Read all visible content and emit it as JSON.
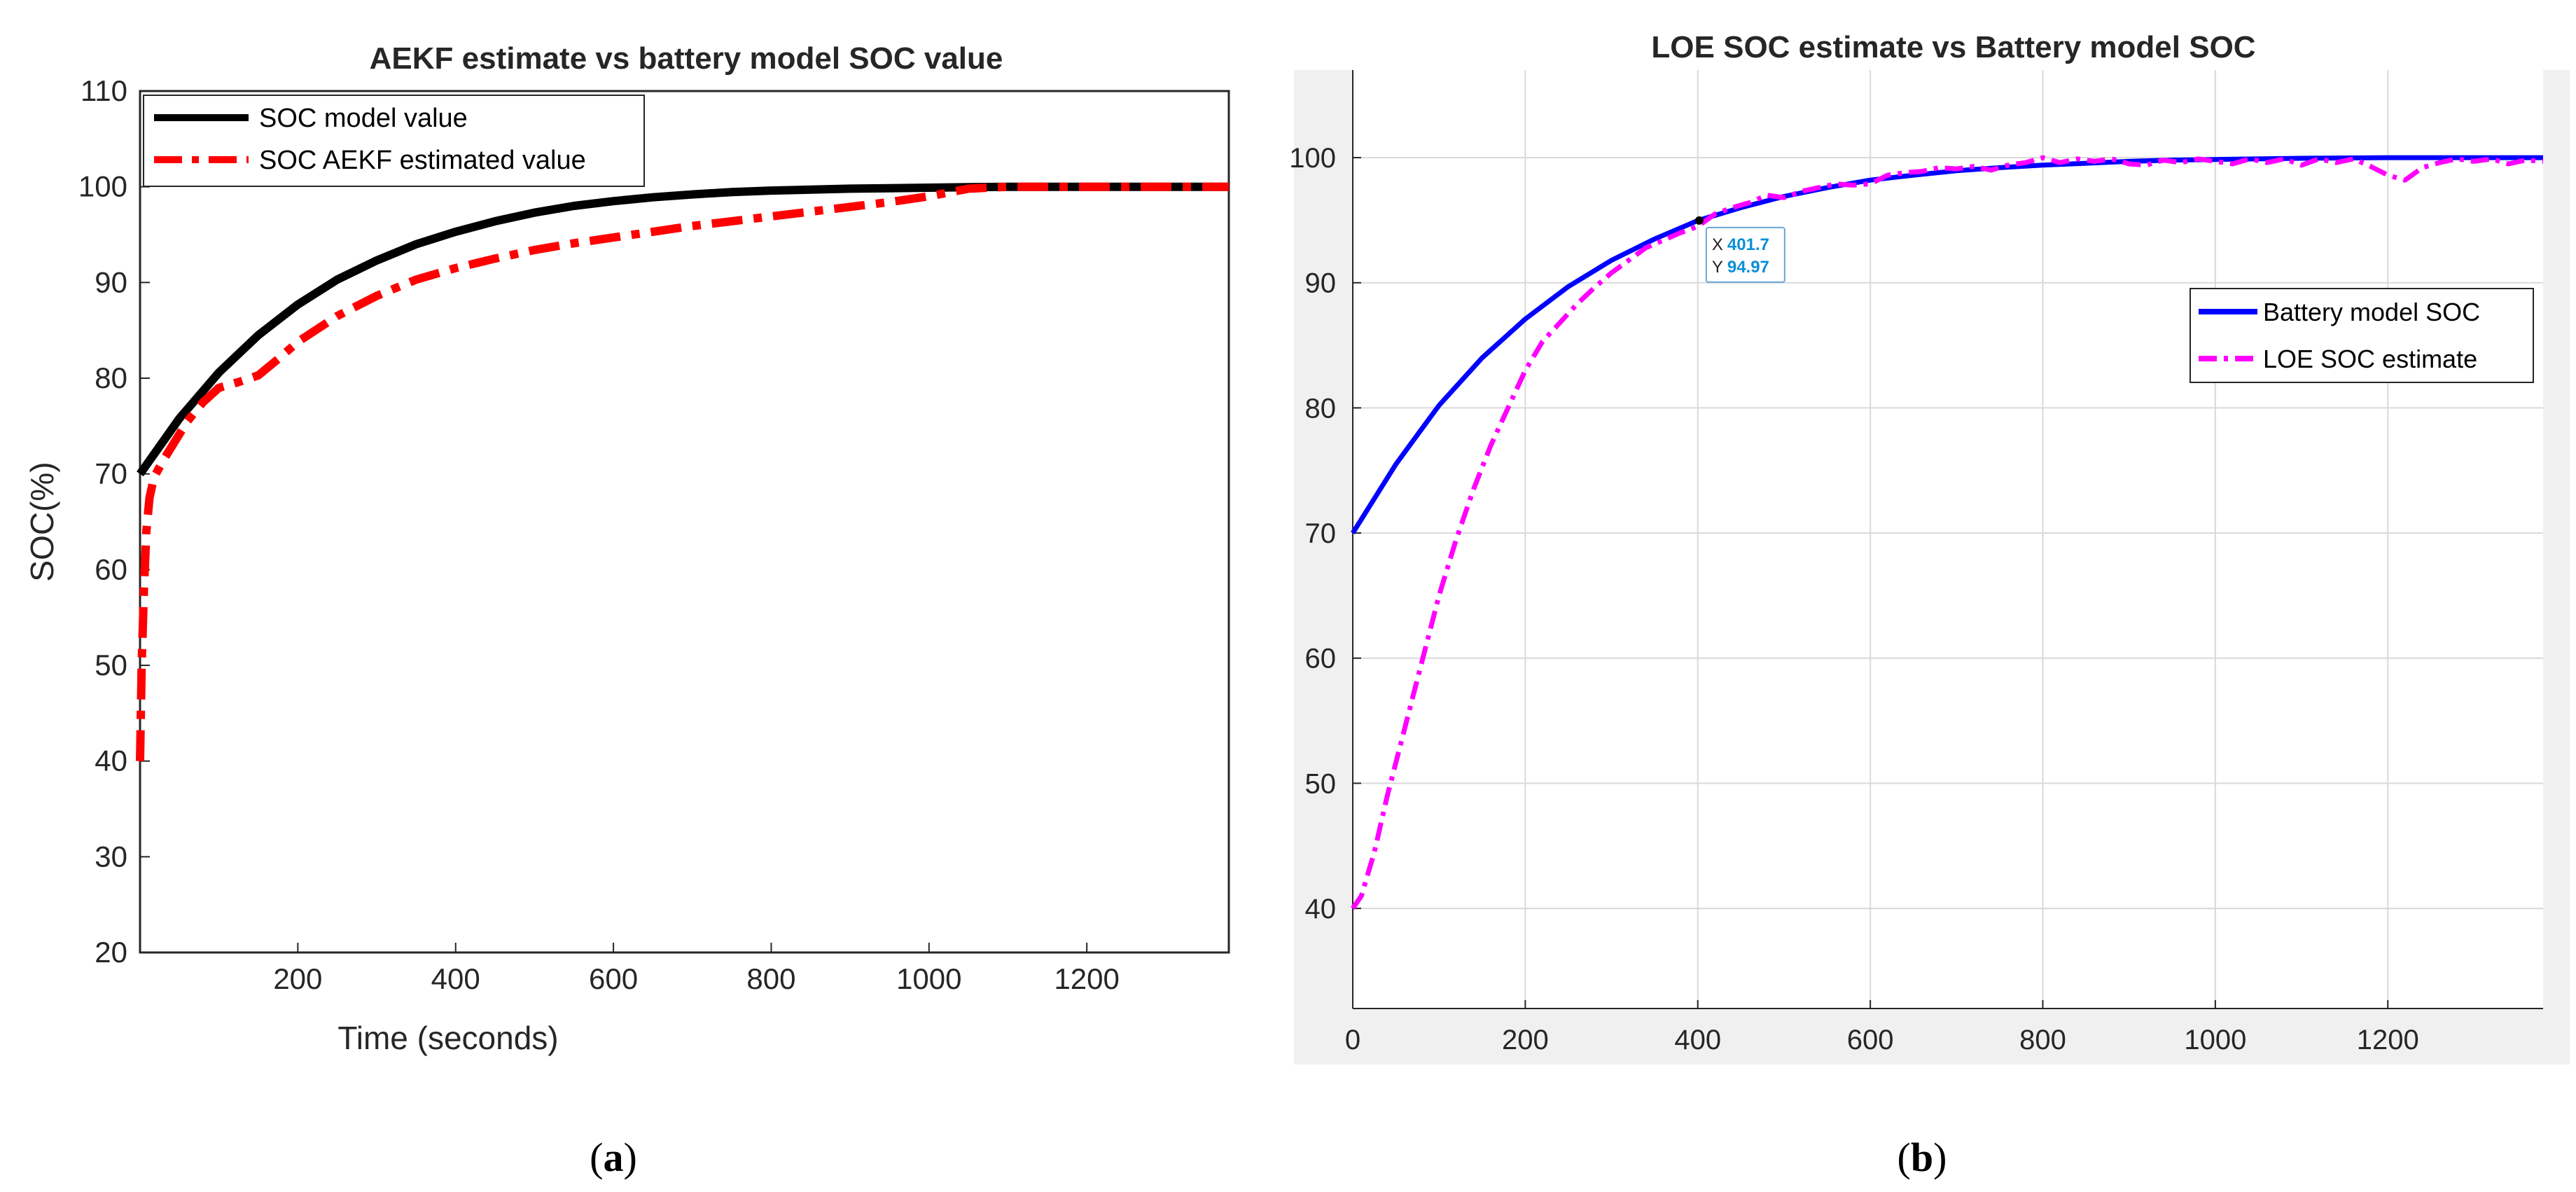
{
  "chart_data": [
    {
      "type": "line",
      "title": "AEKF estimate vs battery model  SOC value",
      "xlabel": "Time (seconds)",
      "ylabel": "SOC(%)",
      "xlim": [
        0,
        1380
      ],
      "ylim": [
        20,
        110
      ],
      "x_ticks": [
        "200",
        "400",
        "600",
        "800",
        "1000",
        "1200"
      ],
      "y_ticks": [
        "20",
        "30",
        "40",
        "50",
        "60",
        "70",
        "80",
        "90",
        "100",
        "110"
      ],
      "grid": false,
      "legend_position": "top-left",
      "series": [
        {
          "name": "SOC model value",
          "color": "#000000",
          "style": "solid",
          "x": [
            0,
            50,
            100,
            150,
            200,
            250,
            300,
            350,
            400,
            450,
            500,
            550,
            600,
            650,
            700,
            750,
            800,
            850,
            900,
            950,
            1000,
            1050,
            1100,
            1150,
            1200,
            1250,
            1300,
            1380
          ],
          "y": [
            70.0,
            75.8,
            80.6,
            84.5,
            87.7,
            90.3,
            92.3,
            94.0,
            95.3,
            96.4,
            97.3,
            98.0,
            98.5,
            98.9,
            99.2,
            99.45,
            99.6,
            99.7,
            99.8,
            99.85,
            99.9,
            99.95,
            100.0,
            100.0,
            100.0,
            100.0,
            100.0,
            100.0
          ]
        },
        {
          "name": "SOC AEKF estimated value",
          "color": "#ff0000",
          "style": "dashdot",
          "x": [
            0,
            2,
            5,
            8,
            12,
            16,
            20,
            30,
            45,
            60,
            80,
            100,
            125,
            150,
            175,
            200,
            250,
            300,
            350,
            400,
            450,
            500,
            550,
            600,
            650,
            700,
            750,
            800,
            850,
            900,
            950,
            1000,
            1050,
            1100,
            1150,
            1200,
            1300,
            1380
          ],
          "y": [
            40.0,
            50.0,
            58.0,
            64.0,
            67.5,
            69.0,
            70.0,
            71.5,
            73.5,
            75.5,
            77.5,
            79.0,
            79.6,
            80.3,
            82.0,
            83.8,
            86.5,
            88.6,
            90.3,
            91.5,
            92.5,
            93.4,
            94.1,
            94.7,
            95.3,
            95.9,
            96.4,
            96.9,
            97.4,
            97.9,
            98.4,
            99.0,
            99.8,
            100.0,
            100.0,
            100.0,
            100.0,
            100.0
          ]
        }
      ]
    },
    {
      "type": "line",
      "title": "LOE  SOC estimate vs Battery model SOC",
      "xlabel": "",
      "ylabel": "",
      "xlim": [
        0,
        1380
      ],
      "ylim": [
        32,
        107
      ],
      "x_ticks": [
        "0",
        "200",
        "400",
        "600",
        "800",
        "1000",
        "1200"
      ],
      "y_ticks": [
        "40",
        "50",
        "60",
        "70",
        "80",
        "90",
        "100"
      ],
      "grid": true,
      "legend_position": "right",
      "datatip": {
        "x_label": "X",
        "x_value": "401.7",
        "y_label": "Y",
        "y_value": "94.97",
        "x": 401.7,
        "y": 94.97
      },
      "series": [
        {
          "name": "Battery  model  SOC",
          "color": "#0000ff",
          "style": "solid",
          "x": [
            0,
            50,
            100,
            150,
            200,
            250,
            300,
            350,
            400,
            450,
            500,
            550,
            600,
            650,
            700,
            750,
            800,
            850,
            900,
            950,
            1000,
            1100,
            1200,
            1300,
            1380
          ],
          "y": [
            70.0,
            75.5,
            80.2,
            84.0,
            87.1,
            89.7,
            91.8,
            93.5,
            94.97,
            96.0,
            96.9,
            97.6,
            98.2,
            98.6,
            98.95,
            99.2,
            99.4,
            99.55,
            99.7,
            99.8,
            99.85,
            99.95,
            100.0,
            100.0,
            100.0
          ]
        },
        {
          "name": "LOE  SOC  estimate",
          "color": "#ff00ff",
          "style": "dashdot",
          "x": [
            0,
            10,
            25,
            40,
            55,
            70,
            85,
            100,
            120,
            140,
            160,
            180,
            200,
            220,
            240,
            260,
            280,
            300,
            320,
            340,
            360,
            380,
            400,
            420,
            440,
            460,
            480,
            500,
            520,
            540,
            560,
            580,
            600,
            620,
            640,
            660,
            680,
            700,
            720,
            740,
            760,
            780,
            800,
            820,
            840,
            860,
            880,
            900,
            920,
            940,
            960,
            980,
            1000,
            1020,
            1040,
            1060,
            1080,
            1100,
            1120,
            1140,
            1160,
            1180,
            1200,
            1220,
            1240,
            1260,
            1280,
            1300,
            1320,
            1340,
            1360,
            1380
          ],
          "y": [
            40.0,
            41.0,
            44.5,
            49.0,
            53.0,
            57.0,
            61.0,
            65.0,
            69.5,
            73.5,
            77.0,
            80.0,
            83.0,
            85.3,
            86.8,
            88.3,
            89.6,
            90.8,
            91.8,
            92.8,
            93.4,
            94.0,
            94.5,
            95.5,
            96.0,
            96.4,
            97.0,
            96.8,
            97.3,
            97.6,
            97.9,
            97.8,
            97.9,
            98.6,
            98.8,
            98.9,
            99.2,
            99.1,
            99.3,
            99.0,
            99.4,
            99.6,
            100.0,
            99.6,
            99.9,
            99.7,
            99.9,
            99.5,
            99.4,
            99.8,
            99.6,
            99.9,
            99.7,
            99.5,
            99.9,
            99.6,
            99.9,
            99.4,
            99.9,
            99.6,
            99.9,
            99.3,
            98.6,
            98.2,
            99.2,
            99.6,
            99.9,
            99.7,
            99.9,
            99.5,
            99.8,
            99.7
          ]
        }
      ]
    }
  ],
  "captions": {
    "a": "(a)",
    "b": "(b)"
  }
}
